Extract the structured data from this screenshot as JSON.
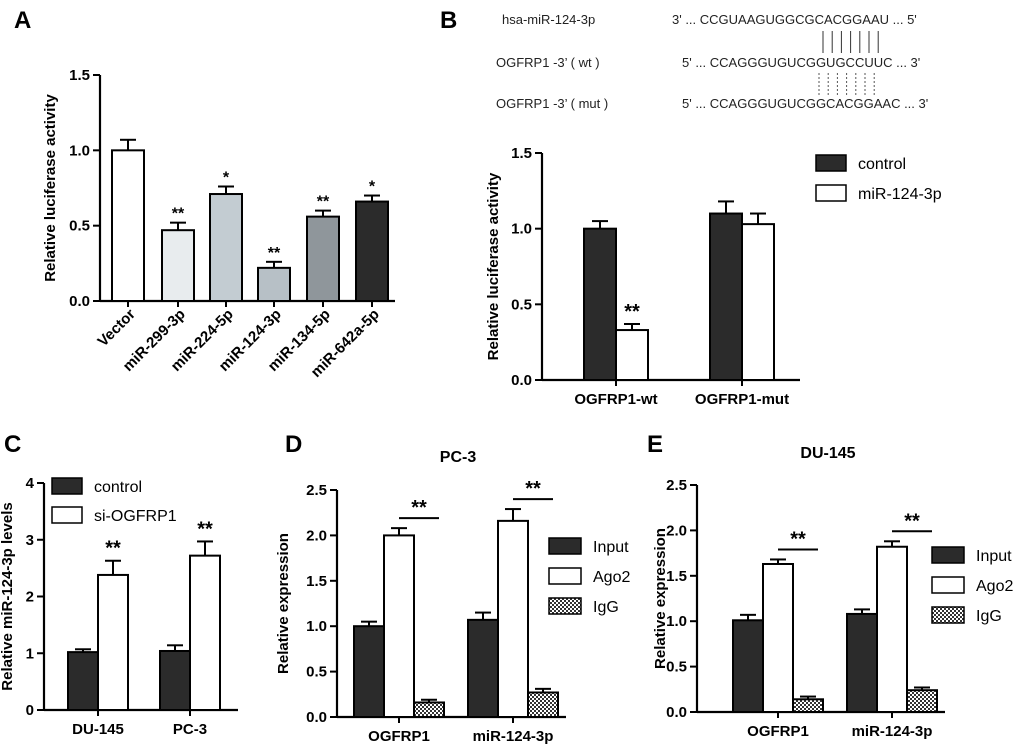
{
  "colors": {
    "dark": "#2b2b2b",
    "white": "#ffffff",
    "axis": "#000000",
    "a_bars": [
      "#ffffff",
      "#e8ecee",
      "#c3ccd2",
      "#b7c0c6",
      "#8f969b",
      "#2b2b2b"
    ]
  },
  "sequences": {
    "rows": [
      {
        "label": "hsa-miR-124-3p",
        "seq": "3' ... CCGUAAGUGGCGCACGGAAU ... 5'"
      },
      {
        "label": "OGFRP1 -3’ ( wt )",
        "seq": "5' ... CCAGGGUGUCGGUGCCUUC ... 3'"
      },
      {
        "label": "OGFRP1 -3’ ( mut )",
        "seq": "5' ... CCAGGGUGUCGGCACGGAAC ... 3'"
      }
    ]
  },
  "chart_data": [
    {
      "panel": "A",
      "type": "bar",
      "title": "",
      "xlabel": "",
      "ylabel": "Relative luciferase activity",
      "ylim": [
        0,
        1.5
      ],
      "yticks": [
        "0.0",
        "0.5",
        "1.0",
        "1.5"
      ],
      "categories": [
        "Vector",
        "miR-299-3p",
        "miR-224-5p",
        "miR-124-3p",
        "miR-134-5p",
        "miR-642a-5p"
      ],
      "values": [
        1.0,
        0.47,
        0.71,
        0.22,
        0.56,
        0.66
      ],
      "errors": [
        0.07,
        0.05,
        0.05,
        0.04,
        0.04,
        0.04
      ],
      "annotations": [
        "",
        "**",
        "*",
        "**",
        "**",
        "*"
      ]
    },
    {
      "panel": "B",
      "type": "bar",
      "title": "",
      "xlabel": "",
      "ylabel": "Relative luciferase activity",
      "ylim": [
        0,
        1.5
      ],
      "yticks": [
        "0.0",
        "0.5",
        "1.0",
        "1.5"
      ],
      "categories": [
        "OGFRP1-wt",
        "OGFRP1-mut"
      ],
      "series": [
        {
          "name": "control",
          "values": [
            1.0,
            1.1
          ],
          "errors": [
            0.05,
            0.08
          ]
        },
        {
          "name": "miR-124-3p",
          "values": [
            0.33,
            1.03
          ],
          "errors": [
            0.04,
            0.07
          ]
        }
      ],
      "annotations": [
        {
          "category": 0,
          "series": 1,
          "text": "**"
        }
      ],
      "legend": "top-right"
    },
    {
      "panel": "C",
      "type": "bar",
      "title": "",
      "xlabel": "",
      "ylabel": "Relative miR-124-3p levels",
      "ylim": [
        0,
        4
      ],
      "yticks": [
        "0",
        "1",
        "2",
        "3",
        "4"
      ],
      "categories": [
        "DU-145",
        "PC-3"
      ],
      "series": [
        {
          "name": "control",
          "values": [
            1.02,
            1.04
          ],
          "errors": [
            0.05,
            0.1
          ]
        },
        {
          "name": "si-OGFRP1",
          "values": [
            2.38,
            2.72
          ],
          "errors": [
            0.25,
            0.25
          ]
        }
      ],
      "annotations": [
        {
          "category": 0,
          "series": 1,
          "text": "**"
        },
        {
          "category": 1,
          "series": 1,
          "text": "**"
        }
      ],
      "legend": "top-left"
    },
    {
      "panel": "D",
      "type": "bar",
      "title": "PC-3",
      "xlabel": "",
      "ylabel": "Relative expression",
      "ylim": [
        0,
        2.5
      ],
      "yticks": [
        "0.0",
        "0.5",
        "1.0",
        "1.5",
        "2.0",
        "2.5"
      ],
      "categories": [
        "OGFRP1",
        "miR-124-3p"
      ],
      "series": [
        {
          "name": "Input",
          "values": [
            1.0,
            1.07
          ],
          "errors": [
            0.05,
            0.08
          ]
        },
        {
          "name": "Ago2",
          "values": [
            2.0,
            2.16
          ],
          "errors": [
            0.08,
            0.13
          ]
        },
        {
          "name": "IgG",
          "values": [
            0.16,
            0.27
          ],
          "errors": [
            0.03,
            0.04
          ]
        }
      ],
      "annotations": [
        {
          "category": 0,
          "text": "**"
        },
        {
          "category": 1,
          "text": "**"
        }
      ],
      "legend": "right"
    },
    {
      "panel": "E",
      "type": "bar",
      "title": "DU-145",
      "xlabel": "",
      "ylabel": "Relative expression",
      "ylim": [
        0,
        2.5
      ],
      "yticks": [
        "0.0",
        "0.5",
        "1.0",
        "1.5",
        "2.0",
        "2.5"
      ],
      "categories": [
        "OGFRP1",
        "miR-124-3p"
      ],
      "series": [
        {
          "name": "Input",
          "values": [
            1.01,
            1.08
          ],
          "errors": [
            0.06,
            0.05
          ]
        },
        {
          "name": "Ago2",
          "values": [
            1.63,
            1.82
          ],
          "errors": [
            0.05,
            0.06
          ]
        },
        {
          "name": "IgG",
          "values": [
            0.14,
            0.24
          ],
          "errors": [
            0.03,
            0.03
          ]
        }
      ],
      "annotations": [
        {
          "category": 0,
          "text": "**"
        },
        {
          "category": 1,
          "text": "**"
        }
      ],
      "legend": "right"
    }
  ]
}
